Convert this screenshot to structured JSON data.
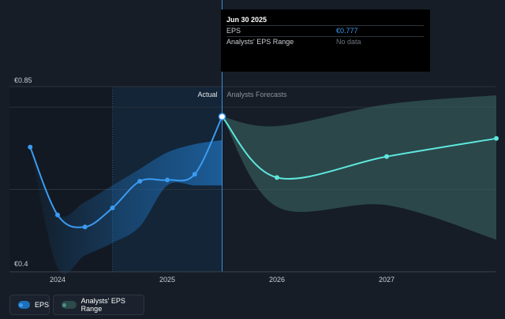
{
  "tooltip": {
    "date": "Jun 30 2025",
    "rows": [
      {
        "label": "EPS",
        "value": "€0.777"
      },
      {
        "label": "Analysts' EPS Range",
        "value": "No data"
      }
    ]
  },
  "legend": {
    "eps_label": "EPS",
    "range_label": "Analysts' EPS Range"
  },
  "colors": {
    "background": "#161d27",
    "eps": "#3b9bf1",
    "forecast": "#5ee7de",
    "forecast_band": "#3e6a66",
    "actual_band": "#1f6fb8"
  },
  "chart_data": {
    "type": "line",
    "ylim": [
      0.4,
      0.85
    ],
    "y_tick_labels": [
      "€0.85",
      "€0.4"
    ],
    "x_tick_labels": [
      "2024",
      "2025",
      "2026",
      "2027"
    ],
    "x_tick_years": [
      2024,
      2025,
      2026,
      2027
    ],
    "section_labels": {
      "actual": "Actual",
      "forecast": "Analysts Forecasts"
    },
    "divider_x": 2025.5,
    "highlight_start_x": 2024.5,
    "series": [
      {
        "name": "EPS",
        "x": [
          2023.75,
          2024.0,
          2024.25,
          2024.5,
          2024.75,
          2025.0,
          2025.25,
          2025.5
        ],
        "y": [
          0.703,
          0.538,
          0.509,
          0.555,
          0.62,
          0.623,
          0.637,
          0.777
        ]
      },
      {
        "name": "Analysts Forecasts",
        "x": [
          2025.5,
          2026.0,
          2027.0,
          2028.0
        ],
        "y": [
          0.777,
          0.629,
          0.68,
          0.724
        ]
      }
    ],
    "actual_range": {
      "x": [
        2023.75,
        2024.0,
        2024.25,
        2024.5,
        2024.75,
        2025.0,
        2025.25,
        2025.5
      ],
      "upper": [
        0.703,
        0.54,
        0.57,
        0.61,
        0.65,
        0.69,
        0.71,
        0.72
      ],
      "lower": [
        0.703,
        0.41,
        0.44,
        0.47,
        0.51,
        0.61,
        0.61,
        0.61
      ]
    },
    "forecast_range": {
      "x": [
        2025.5,
        2026.0,
        2027.0,
        2028.0
      ],
      "upper": [
        0.777,
        0.754,
        0.807,
        0.829
      ],
      "lower": [
        0.777,
        0.558,
        0.562,
        0.478
      ]
    }
  }
}
